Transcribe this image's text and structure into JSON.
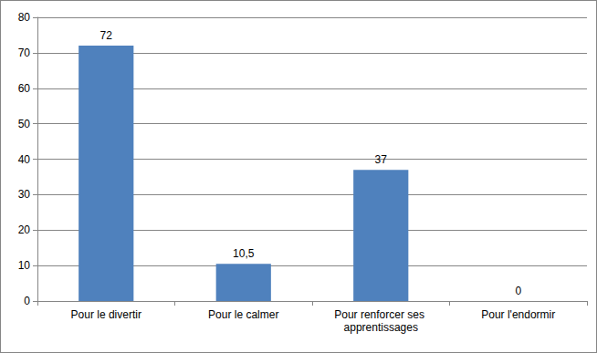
{
  "chart_data": {
    "type": "bar",
    "categories": [
      "Pour le divertir",
      "Pour le calmer",
      "Pour renforcer ses apprentissages",
      "Pour l'endormir"
    ],
    "values": [
      72,
      10.5,
      37,
      0
    ],
    "value_labels": [
      "72",
      "10,5",
      "37",
      "0"
    ],
    "color": "#4f81bd",
    "ylim": [
      0,
      80
    ],
    "yticks": [
      0,
      10,
      20,
      30,
      40,
      50,
      60,
      70,
      80
    ],
    "grid": true,
    "data_labels": true
  }
}
